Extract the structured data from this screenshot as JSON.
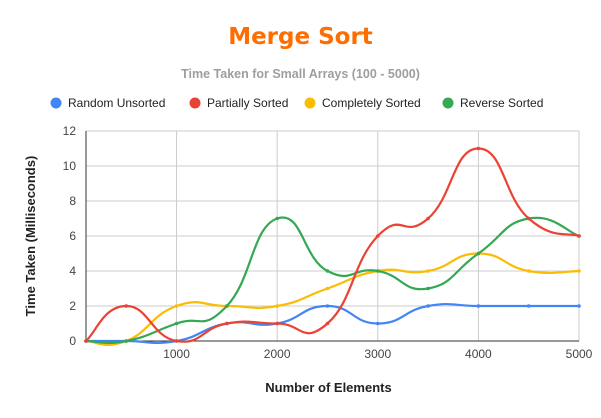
{
  "colors": {
    "title": "#ff6d00",
    "subtitle": "#9e9e9e",
    "grid": "#cccccc",
    "axis": "#333333",
    "series": [
      "#4285f4",
      "#ea4335",
      "#fbbc04",
      "#34a853"
    ]
  },
  "chart_data": {
    "type": "line",
    "title": "Merge Sort",
    "subtitle": "Time Taken for Small Arrays (100 - 5000)",
    "xlabel": "Number of Elements",
    "ylabel": "Time Taken (Milliseconds)",
    "x": [
      100,
      500,
      1000,
      1500,
      2000,
      2500,
      3000,
      3500,
      4000,
      4500,
      5000
    ],
    "xlim": [
      100,
      5000
    ],
    "ylim": [
      0,
      12
    ],
    "xticks": [
      1000,
      2000,
      3000,
      4000,
      5000
    ],
    "xtick_labels": [
      "1000",
      "2000",
      "3000",
      "4000",
      "5000"
    ],
    "yticks": [
      0,
      2,
      4,
      6,
      8,
      10,
      12
    ],
    "ytick_labels": [
      "0",
      "2",
      "4",
      "6",
      "8",
      "10",
      "12"
    ],
    "grid": true,
    "smooth": true,
    "legend_position": "top",
    "series": [
      {
        "name": "Random Unsorted",
        "values": [
          0,
          0,
          0,
          1,
          1,
          2,
          1,
          2,
          2,
          2,
          2
        ]
      },
      {
        "name": "Partially Sorted",
        "values": [
          0,
          2,
          0,
          1,
          1,
          1,
          6,
          7,
          11,
          7,
          6
        ]
      },
      {
        "name": "Completely Sorted",
        "values": [
          0,
          0,
          2,
          2,
          2,
          3,
          4,
          4,
          5,
          4,
          4
        ]
      },
      {
        "name": "Reverse Sorted",
        "values": [
          0,
          0,
          1,
          2,
          7,
          4,
          4,
          3,
          5,
          7,
          6
        ]
      }
    ]
  }
}
